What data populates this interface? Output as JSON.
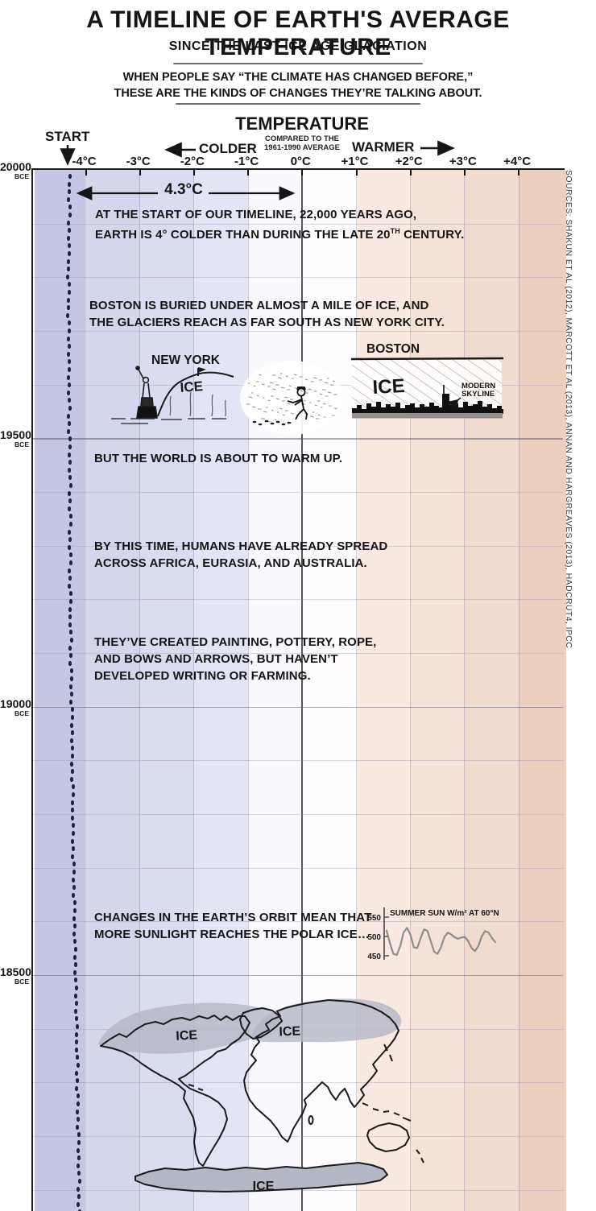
{
  "header": {
    "title": "A TIMELINE OF EARTH'S AVERAGE TEMPERATURE",
    "subtitle": "SINCE THE LAST ICE AGE GLACIATION",
    "blurb_line1": "WHEN PEOPLE SAY “THE CLIMATE HAS CHANGED BEFORE,”",
    "blurb_line2": "THESE ARE THE KINDS OF CHANGES THEY’RE TALKING ABOUT."
  },
  "axis_header": {
    "label": "TEMPERATURE",
    "sub_line1": "COMPARED TO THE",
    "sub_line2": "1961-1990 AVERAGE",
    "colder": "COLDER",
    "warmer": "WARMER",
    "start": "START"
  },
  "sources": "SOURCES: SHAKUN ET AL (2012), MARCOTT ET AL (2013), ANNAN AND HARGREAVES (2013), HADCRUT4, IPCC",
  "annotations": {
    "span_label": "4.3°C",
    "start_line1": "AT THE START OF OUR TIMELINE, 22,000 YEARS AGO,",
    "start_line2_pre": "EARTH IS 4° COLDER THAN DURING THE LATE 20",
    "start_line2_sup": "TH",
    "start_line2_post": " CENTURY.",
    "boston_line1": "BOSTON IS BURIED UNDER ALMOST A MILE OF ICE, AND",
    "boston_line2": "THE GLACIERS REACH AS FAR SOUTH AS NEW YORK CITY.",
    "warm_up": "BUT THE WORLD IS ABOUT TO WARM UP.",
    "humans_line1": "BY THIS TIME, HUMANS HAVE ALREADY SPREAD",
    "humans_line2": "ACROSS AFRICA, EURASIA, AND AUSTRALIA.",
    "tools_line1": "THEY’VE CREATED PAINTING, POTTERY, ROPE,",
    "tools_line2": "AND BOWS AND ARROWS, BUT HAVEN’T",
    "tools_line3": "DEVELOPED WRITING OR FARMING.",
    "orbit_line1": "CHANGES IN THE EARTH’S ORBIT MEAN THAT",
    "orbit_line2": "MORE SUNLIGHT REACHES THE POLAR ICE…"
  },
  "drawings": {
    "new_york_label": "NEW YORK",
    "ny_ice_label": "ICE",
    "boston_label": "BOSTON",
    "boston_ice_label": "ICE",
    "modern_skyline_line1": "MODERN",
    "modern_skyline_line2": "SKYLINE",
    "map_ice_na": "ICE",
    "map_ice_eurasia": "ICE",
    "map_ice_antarctica": "ICE"
  },
  "chart_data": {
    "type": "line",
    "title": "A TIMELINE OF EARTH'S AVERAGE TEMPERATURE SINCE THE LAST ICE AGE GLACIATION",
    "x_axis": {
      "label": "TEMPERATURE COMPARED TO THE 1961-1990 AVERAGE",
      "unit": "°C",
      "range": [
        -4.95,
        4.88
      ],
      "ticks": [
        {
          "value": -4,
          "label": "-4°C"
        },
        {
          "value": -3,
          "label": "-3°C"
        },
        {
          "value": -2,
          "label": "-2°C"
        },
        {
          "value": -1,
          "label": "-1°C"
        },
        {
          "value": 0,
          "label": "0°C"
        },
        {
          "value": 1,
          "label": "+1°C"
        },
        {
          "value": 2,
          "label": "+2°C"
        },
        {
          "value": 3,
          "label": "+3°C"
        },
        {
          "value": 4,
          "label": "+4°C"
        }
      ]
    },
    "y_axis": {
      "unit": "BCE",
      "visible_range": [
        20000,
        18070
      ],
      "minor_step_years": 100,
      "major_step_years": 500,
      "major_tick_years": [
        20000,
        19500,
        19000,
        18500
      ]
    },
    "bands": [
      {
        "from": -4.95,
        "to": -4,
        "color": "#c5c6e3"
      },
      {
        "from": -4,
        "to": -3,
        "color": "#d4d6eb"
      },
      {
        "from": -3,
        "to": -2,
        "color": "#dadcef"
      },
      {
        "from": -2,
        "to": -1,
        "color": "#e3e5f4"
      },
      {
        "from": -1,
        "to": 0,
        "color": "#f9f9fe"
      },
      {
        "from": 0,
        "to": 1,
        "color": "#fefcfd"
      },
      {
        "from": 1,
        "to": 2,
        "color": "#f8eae3"
      },
      {
        "from": 2,
        "to": 3,
        "color": "#f4e2d9"
      },
      {
        "from": 3,
        "to": 4,
        "color": "#f1dbce"
      },
      {
        "from": 4,
        "to": 4.88,
        "color": "#eccfbc"
      }
    ],
    "series": [
      {
        "name": "global-average-temperature-anomaly",
        "points": [
          [
            20000,
            -4.3
          ],
          [
            19800,
            -4.32
          ],
          [
            19600,
            -4.31
          ],
          [
            19400,
            -4.29
          ],
          [
            19200,
            -4.29
          ],
          [
            19000,
            -4.26
          ],
          [
            18800,
            -4.24
          ],
          [
            18600,
            -4.21
          ],
          [
            18400,
            -4.17
          ],
          [
            18200,
            -4.14
          ],
          [
            18050,
            -4.12
          ]
        ]
      }
    ],
    "annotation_span": {
      "label": "4.3°C",
      "from_anomaly": -4.3,
      "to_anomaly": 0
    },
    "inset": {
      "type": "line",
      "title": "SUMMER SUN W/m² AT 60°N",
      "y_ticks": [
        550,
        500,
        450
      ],
      "values": [
        515,
        482,
        455,
        452,
        475,
        510,
        522,
        505,
        472,
        470,
        495,
        518,
        515,
        488,
        460,
        455,
        472,
        498,
        510,
        505,
        498,
        494,
        497,
        499,
        488,
        470,
        462,
        475,
        500,
        514,
        510,
        496,
        485
      ]
    }
  }
}
